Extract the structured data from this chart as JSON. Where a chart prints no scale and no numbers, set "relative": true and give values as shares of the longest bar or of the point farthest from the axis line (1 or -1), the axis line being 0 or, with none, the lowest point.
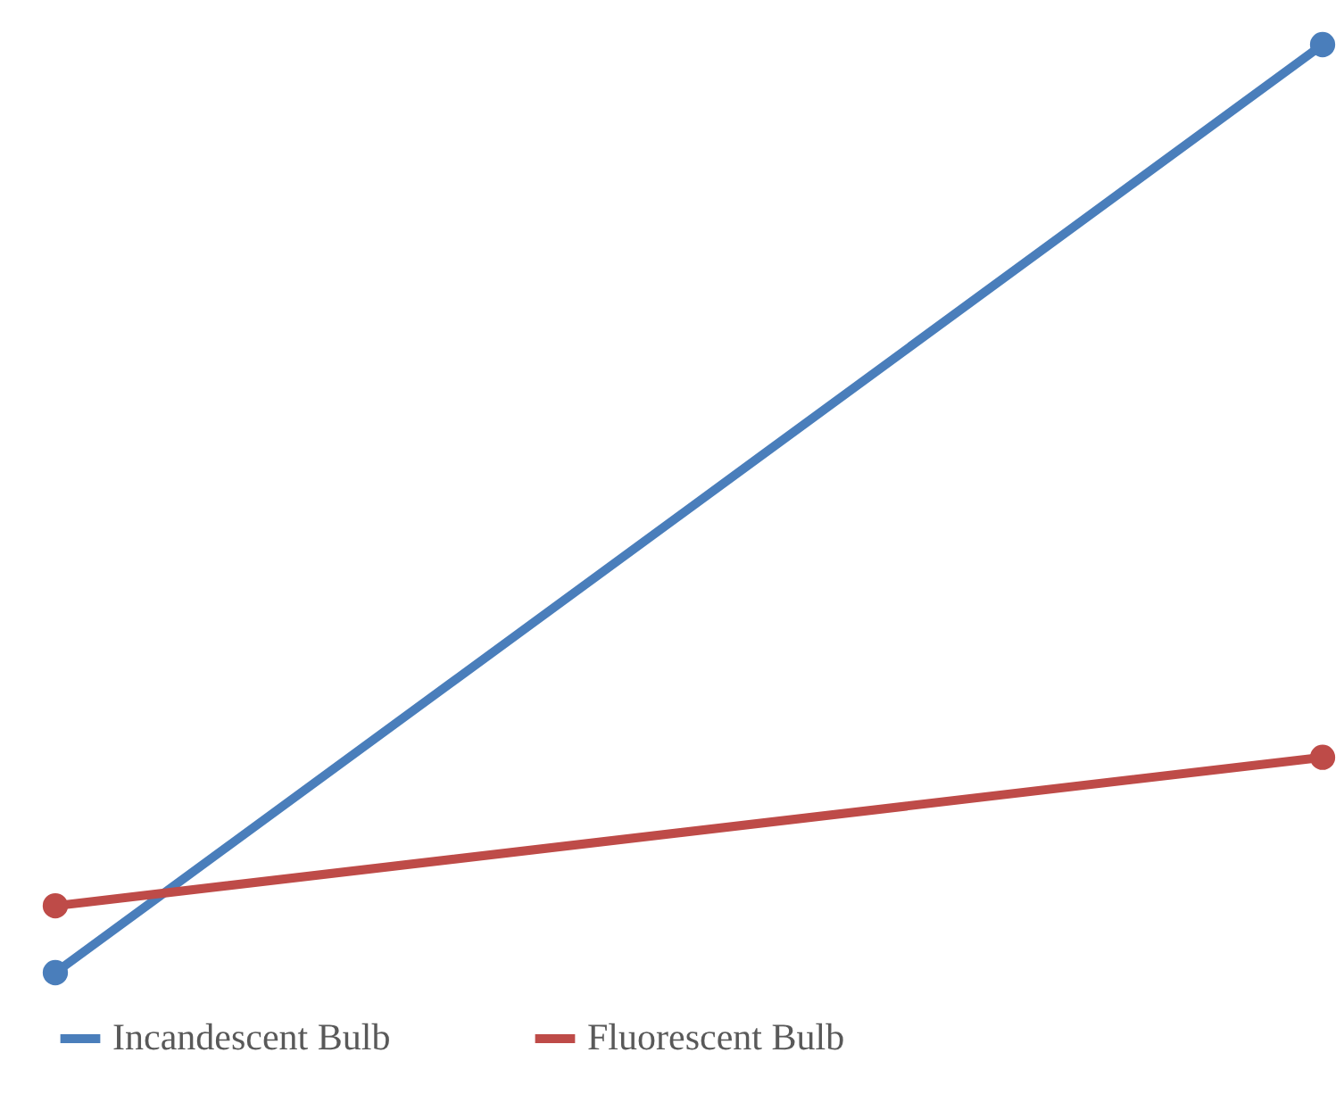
{
  "chart_data": {
    "type": "line",
    "relative": true,
    "categories": [
      null,
      null
    ],
    "series": [
      {
        "name": "Incandescent Bulb",
        "color": "#4a7ebb",
        "values": [
          0,
          1
        ]
      },
      {
        "name": "Fluorescent Bulb",
        "color": "#be4b48",
        "values": [
          0.072,
          0.232
        ]
      }
    ],
    "legend": "bottom",
    "marker": "circle",
    "line_style": "solid"
  }
}
